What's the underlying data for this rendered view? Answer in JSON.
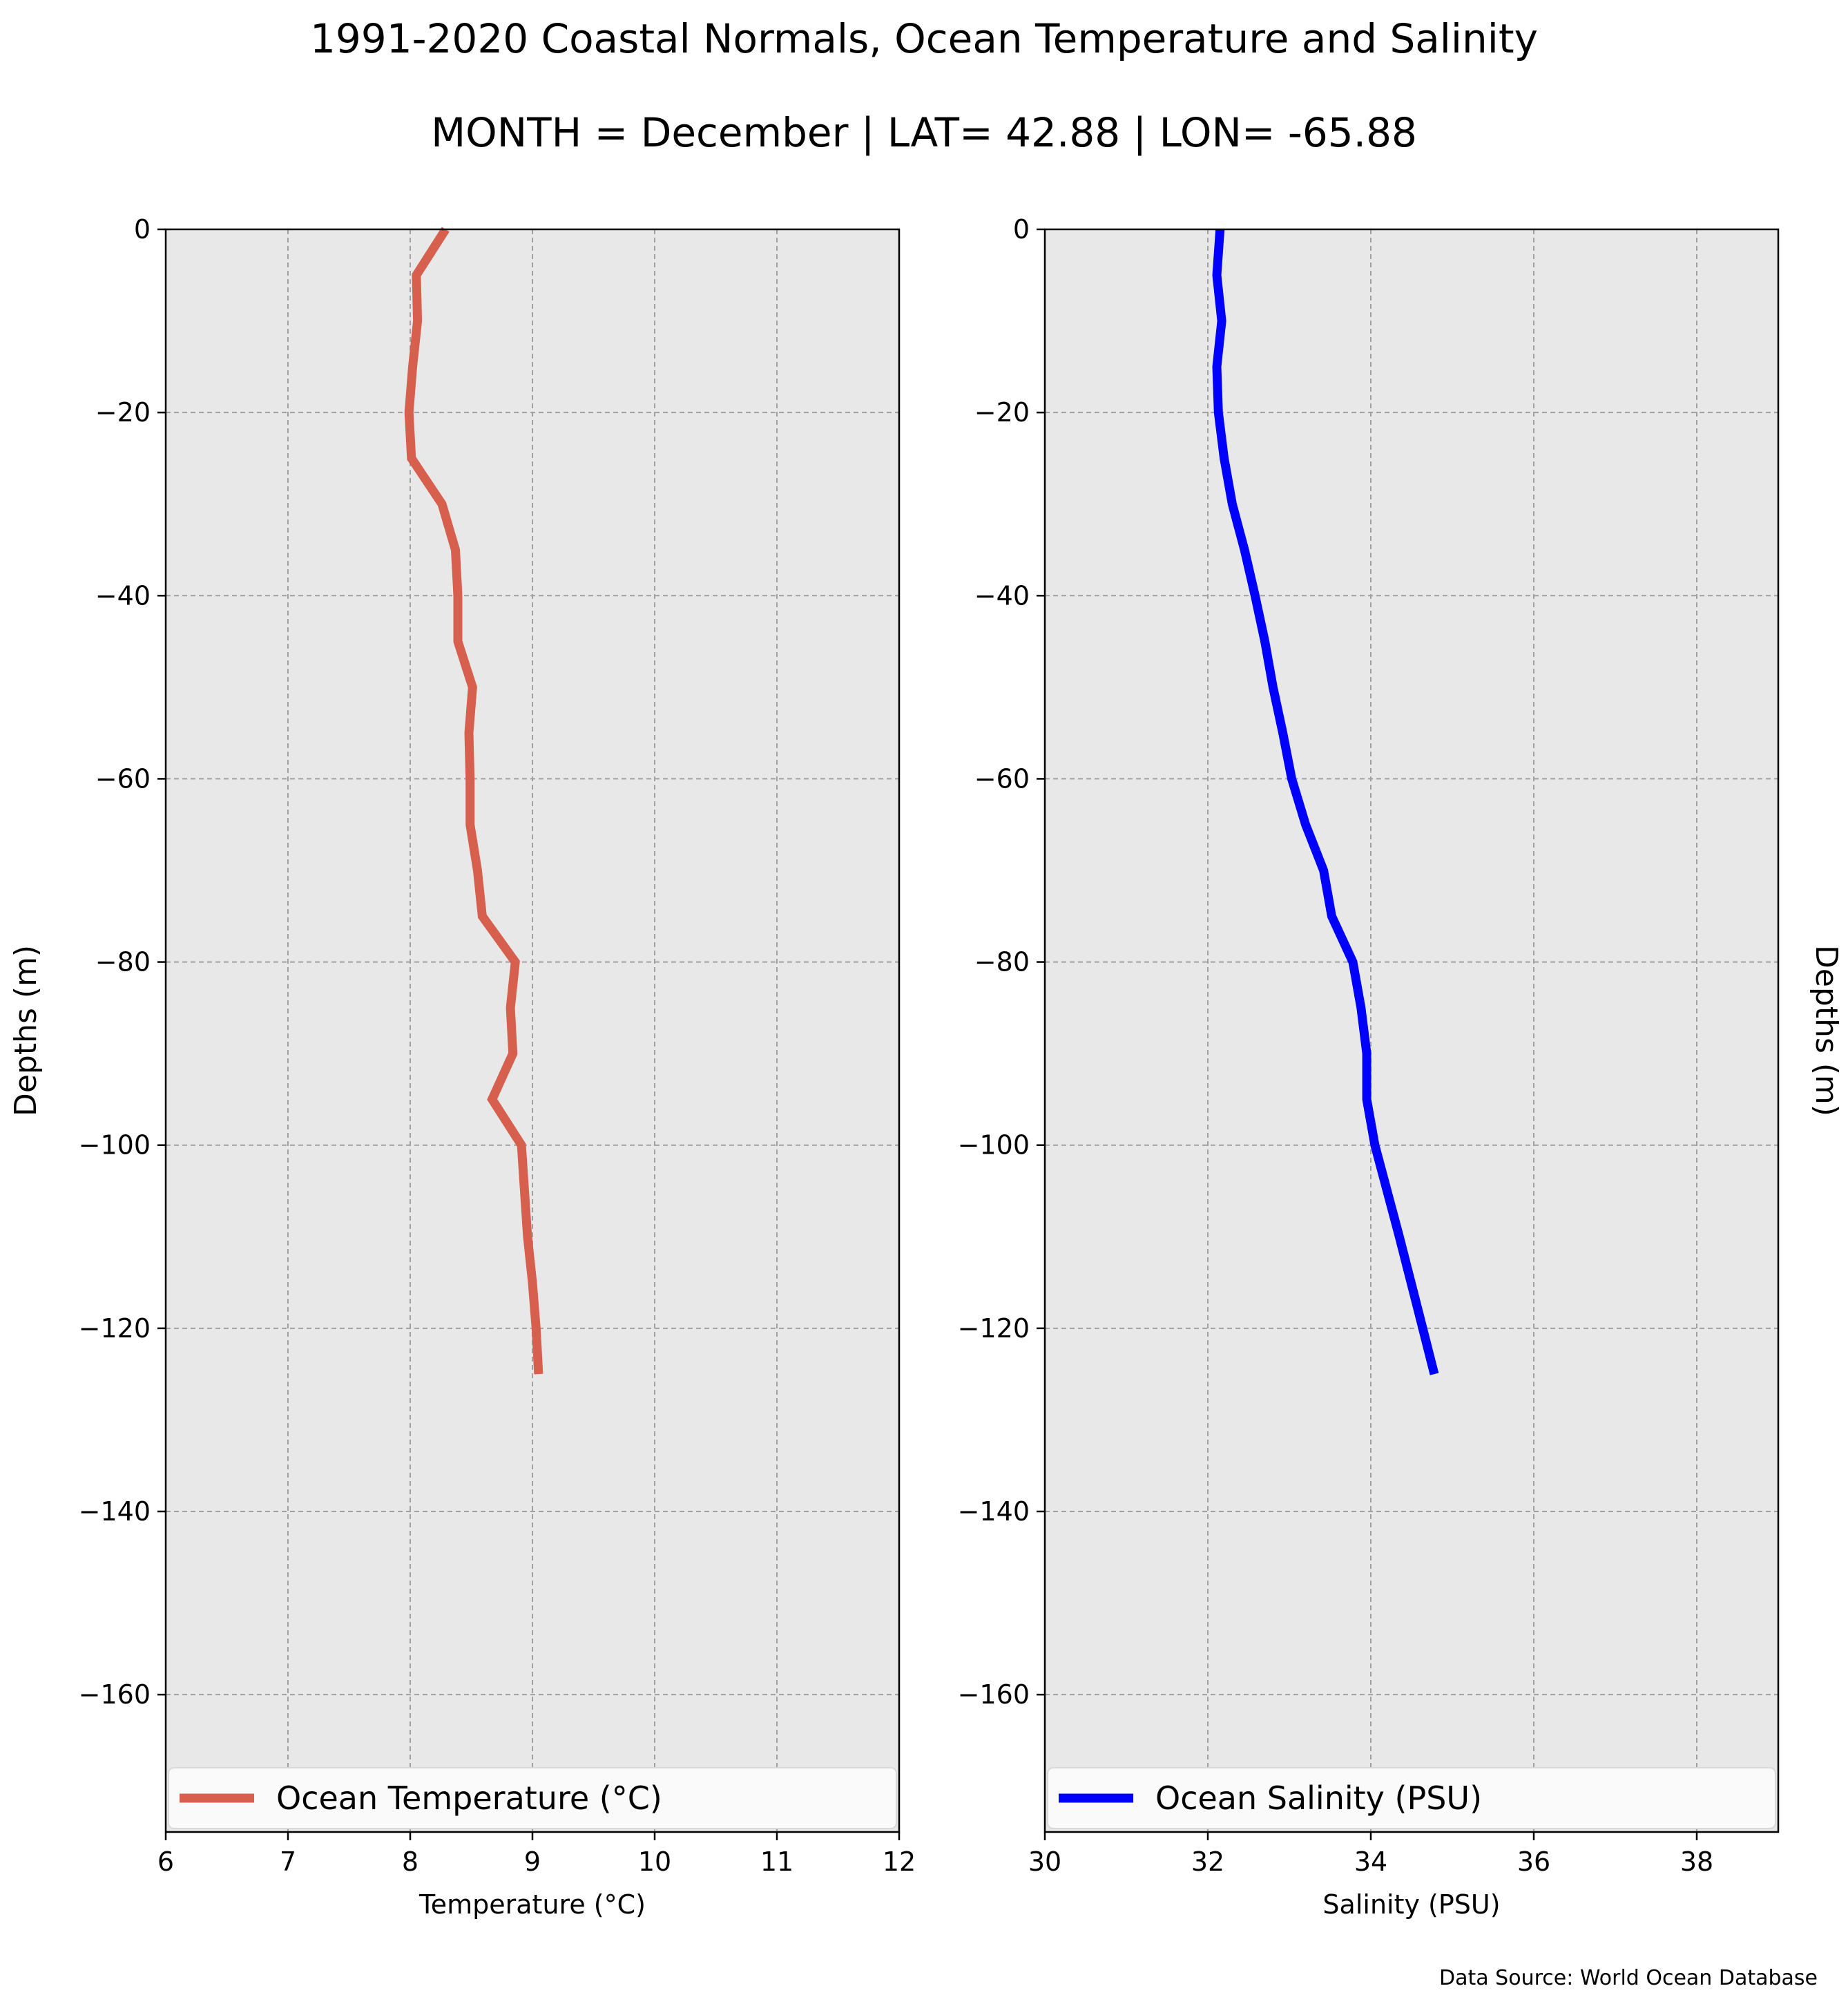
{
  "title": "1991-2020 Coastal Normals, Ocean Temperature and Salinity",
  "subtitle": "MONTH = December | LAT= 42.88 | LON= -65.88",
  "source": "Data Source: World Ocean Database",
  "chart_data": [
    {
      "type": "line",
      "xlabel": "Temperature (°C)",
      "ylabel": "Depths (m)",
      "xlim": [
        6,
        12
      ],
      "ylim": [
        -175,
        0
      ],
      "xticks": [
        "6",
        "7",
        "8",
        "9",
        "10",
        "11",
        "12"
      ],
      "yticks": [
        "0",
        "−20",
        "−40",
        "−60",
        "−80",
        "−100",
        "−120",
        "−140",
        "−160"
      ],
      "grid": true,
      "legend_position": "bottom",
      "series": [
        {
          "name": "Ocean Temperature (°C)",
          "color": "#d6604d",
          "x": [
            8.29,
            8.05,
            8.06,
            8.02,
            7.99,
            8.01,
            8.26,
            8.37,
            8.39,
            8.39,
            8.51,
            8.48,
            8.49,
            8.49,
            8.55,
            8.59,
            8.86,
            8.82,
            8.84,
            8.67,
            8.91,
            8.96,
            9.0,
            9.03,
            9.05
          ],
          "y": [
            0,
            -5,
            -10,
            -15,
            -20,
            -25,
            -30,
            -35,
            -40,
            -45,
            -50,
            -55,
            -60,
            -65,
            -70,
            -75,
            -80,
            -85,
            -90,
            -95,
            -100,
            -110,
            -115,
            -120,
            -125
          ]
        }
      ]
    },
    {
      "type": "line",
      "xlabel": "Salinity (PSU)",
      "ylabel": "Depths (m)",
      "xlim": [
        30,
        39
      ],
      "ylim": [
        -175,
        0
      ],
      "xticks": [
        "30",
        "32",
        "34",
        "36",
        "38"
      ],
      "yticks": [
        "0",
        "−20",
        "−40",
        "−60",
        "−80",
        "−100",
        "−120",
        "−140",
        "−160"
      ],
      "grid": true,
      "legend_position": "bottom",
      "series": [
        {
          "name": "Ocean Salinity (PSU)",
          "color": "#0000ff",
          "x": [
            32.15,
            32.11,
            32.17,
            32.11,
            32.13,
            32.2,
            32.3,
            32.45,
            32.58,
            32.7,
            32.8,
            32.92,
            33.03,
            33.2,
            33.42,
            33.52,
            33.78,
            33.88,
            33.95,
            33.95,
            34.05,
            34.35,
            34.58,
            34.78
          ],
          "y": [
            0,
            -5,
            -10,
            -15,
            -20,
            -25,
            -30,
            -35,
            -40,
            -45,
            -50,
            -55,
            -60,
            -65,
            -70,
            -75,
            -80,
            -85,
            -90,
            -95,
            -100,
            -110,
            -118,
            -125
          ]
        }
      ]
    }
  ]
}
